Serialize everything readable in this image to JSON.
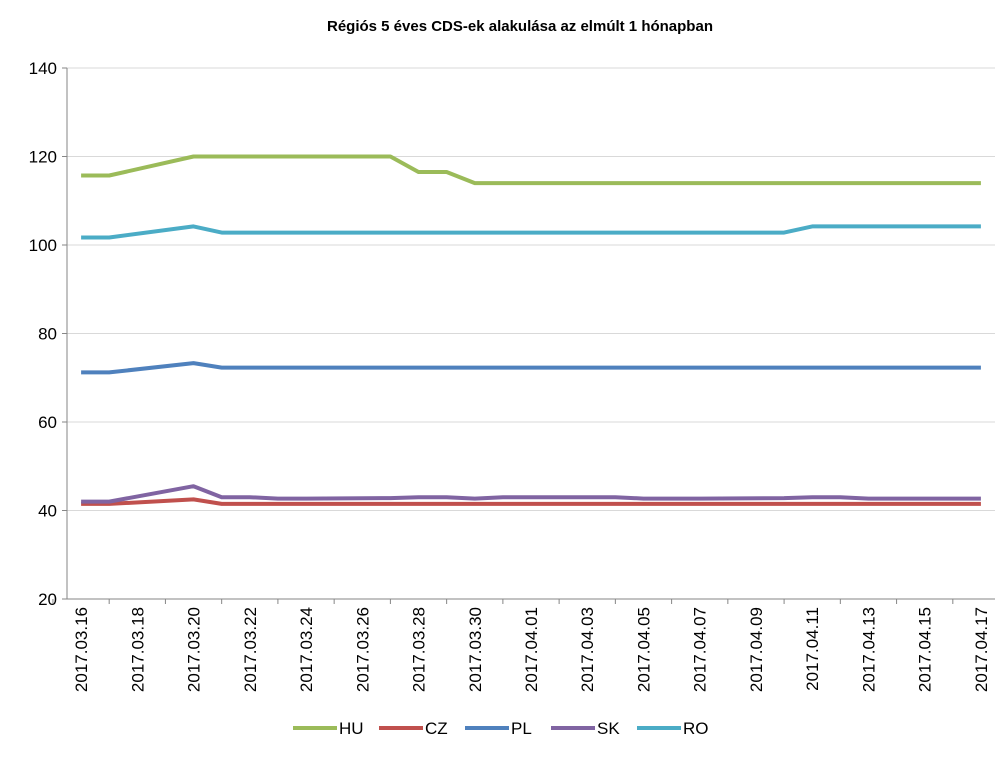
{
  "chart_data": {
    "type": "line",
    "title": "Régiós 5 éves CDS-ek alakulása az elmúlt 1 hónapban",
    "x": [
      "2017.03.16",
      "2017.03.17",
      "2017.03.20",
      "2017.03.21",
      "2017.03.22",
      "2017.03.23",
      "2017.03.24",
      "2017.03.27",
      "2017.03.28",
      "2017.03.29",
      "2017.03.30",
      "2017.03.31",
      "2017.04.03",
      "2017.04.04",
      "2017.04.05",
      "2017.04.06",
      "2017.04.07",
      "2017.04.10",
      "2017.04.11",
      "2017.04.12",
      "2017.04.13",
      "2017.04.14",
      "2017.04.17"
    ],
    "xticks": [
      "2017.03.16",
      "2017.03.18",
      "2017.03.20",
      "2017.03.22",
      "2017.03.24",
      "2017.03.26",
      "2017.03.28",
      "2017.03.30",
      "2017.04.01",
      "2017.04.03",
      "2017.04.05",
      "2017.04.07",
      "2017.04.09",
      "2017.04.11",
      "2017.04.13",
      "2017.04.15",
      "2017.04.17"
    ],
    "ylim": [
      20,
      140
    ],
    "yticks": [
      20,
      40,
      60,
      80,
      100,
      120,
      140
    ],
    "grid": true,
    "legend": "bottom",
    "series": [
      {
        "name": "HU",
        "color": "#9bbb59",
        "values": [
          115.7,
          115.7,
          120,
          120,
          120,
          120,
          120,
          120,
          116.5,
          116.5,
          114,
          114,
          114,
          114,
          114,
          114,
          114,
          114,
          114,
          114,
          114,
          114,
          114
        ]
      },
      {
        "name": "CZ",
        "color": "#c0504d",
        "values": [
          41.5,
          41.5,
          42.5,
          41.5,
          41.5,
          41.5,
          41.5,
          41.5,
          41.5,
          41.5,
          41.5,
          41.5,
          41.5,
          41.5,
          41.5,
          41.5,
          41.5,
          41.5,
          41.5,
          41.5,
          41.5,
          41.5,
          41.5
        ]
      },
      {
        "name": "PL",
        "color": "#4f81bd",
        "values": [
          71.2,
          71.2,
          73.3,
          72.3,
          72.3,
          72.3,
          72.3,
          72.3,
          72.3,
          72.3,
          72.3,
          72.3,
          72.3,
          72.3,
          72.3,
          72.3,
          72.3,
          72.3,
          72.3,
          72.3,
          72.3,
          72.3,
          72.3
        ]
      },
      {
        "name": "SK",
        "color": "#8064a2",
        "values": [
          42,
          42,
          45.5,
          43,
          43,
          42.7,
          42.7,
          42.8,
          43,
          43,
          42.7,
          43,
          43,
          43,
          42.7,
          42.7,
          42.7,
          42.8,
          43,
          43,
          42.7,
          42.7,
          42.7
        ]
      },
      {
        "name": "RO",
        "color": "#4bacc6",
        "values": [
          101.7,
          101.7,
          104.2,
          102.8,
          102.8,
          102.8,
          102.8,
          102.8,
          102.8,
          102.8,
          102.8,
          102.8,
          102.8,
          102.8,
          102.8,
          102.8,
          102.8,
          102.8,
          104.2,
          104.2,
          104.2,
          104.2,
          104.2
        ]
      }
    ]
  }
}
